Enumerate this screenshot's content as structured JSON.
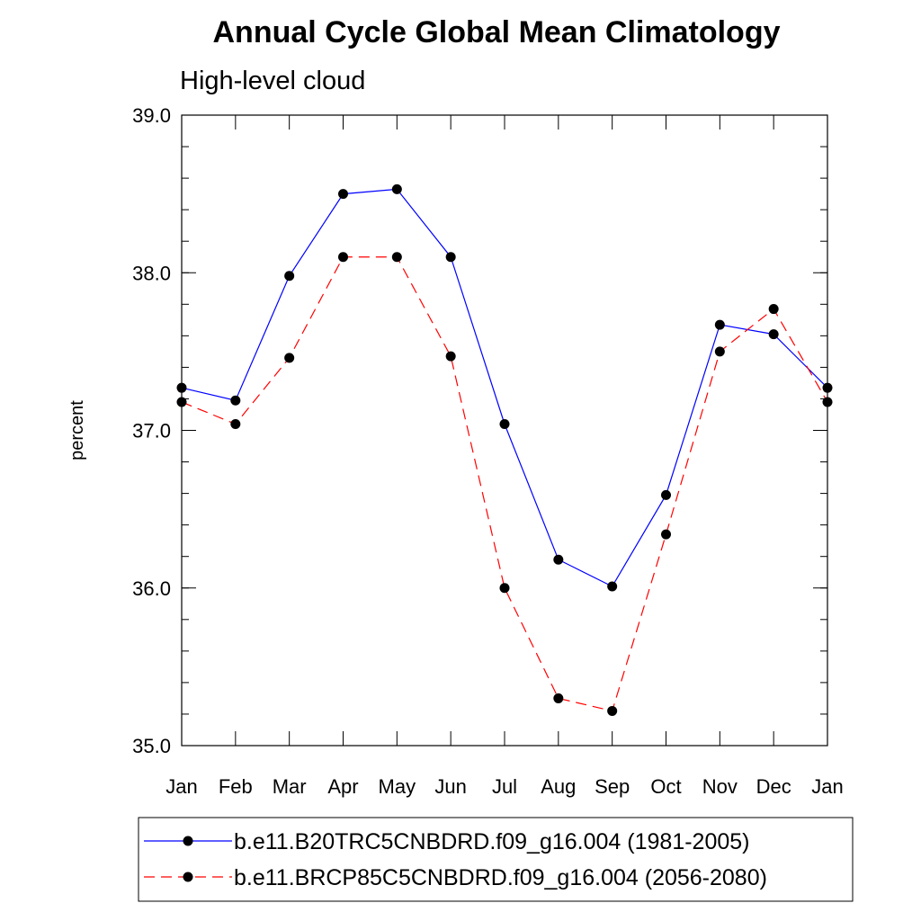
{
  "chart_data": {
    "type": "line",
    "title": "Annual Cycle Global Mean Climatology",
    "subtitle": "High-level cloud",
    "ylabel": "percent",
    "xlabel": "",
    "categories": [
      "Jan",
      "Feb",
      "Mar",
      "Apr",
      "May",
      "Jun",
      "Jul",
      "Aug",
      "Sep",
      "Oct",
      "Nov",
      "Dec",
      "Jan"
    ],
    "ylim": [
      35.0,
      39.0
    ],
    "yticks": [
      "35.0",
      "36.0",
      "37.0",
      "38.0",
      "39.0"
    ],
    "grid": false,
    "legend_position": "bottom",
    "series": [
      {
        "name": "b.e11.B20TRC5CNBDRD.f09_g16.004 (1981-2005)",
        "color": "#0000ff",
        "dash": "solid",
        "values": [
          37.27,
          37.19,
          37.98,
          38.5,
          38.53,
          38.1,
          37.04,
          36.18,
          36.01,
          36.59,
          37.67,
          37.61,
          37.27
        ]
      },
      {
        "name": "b.e11.BRCP85C5CNBDRD.f09_g16.004 (2056-2080)",
        "color": "#ff0000",
        "dash": "dashed",
        "values": [
          37.18,
          37.04,
          37.46,
          38.1,
          38.1,
          37.47,
          36.0,
          35.3,
          35.22,
          36.34,
          37.5,
          37.77,
          37.18
        ]
      }
    ]
  }
}
